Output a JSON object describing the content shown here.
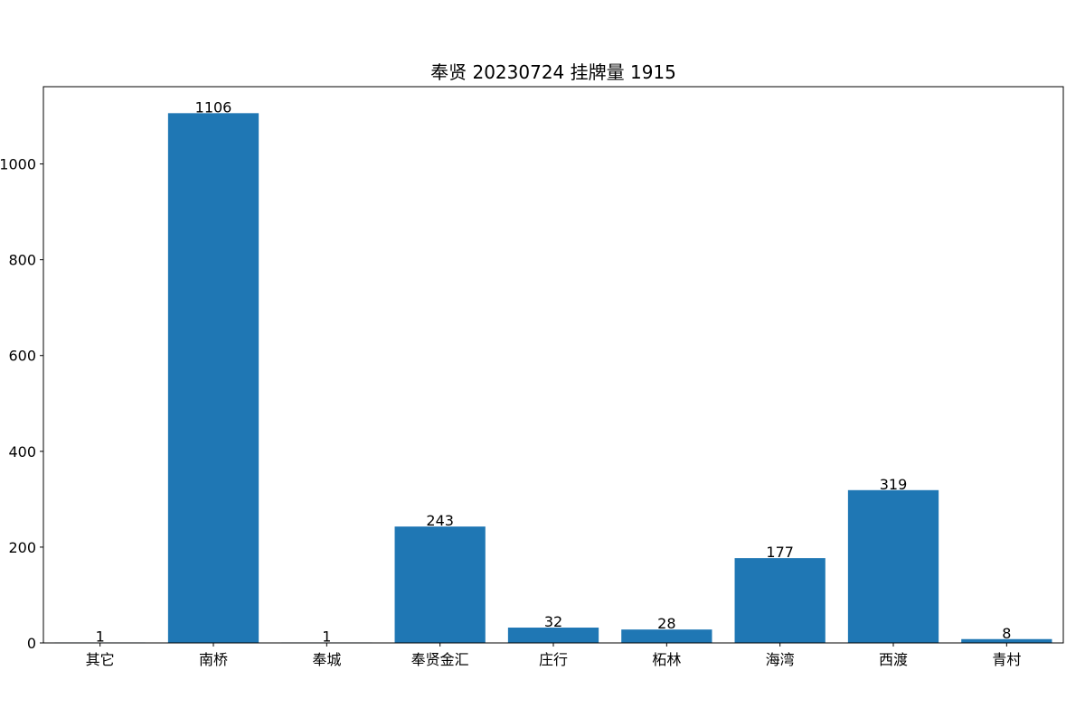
{
  "chart_data": {
    "type": "bar",
    "title": "奉贤 20230724 挂牌量 1915",
    "categories": [
      "其它",
      "南桥",
      "奉城",
      "奉贤金汇",
      "庄行",
      "柘林",
      "海湾",
      "西渡",
      "青村"
    ],
    "values": [
      1,
      1106,
      1,
      243,
      32,
      28,
      177,
      319,
      8
    ],
    "ylim": [
      0,
      1161.3
    ],
    "yticks": [
      0,
      200,
      400,
      600,
      800,
      1000
    ],
    "xlabel": "",
    "ylabel": "",
    "grid": false,
    "bar_color": "#1f77b4"
  }
}
